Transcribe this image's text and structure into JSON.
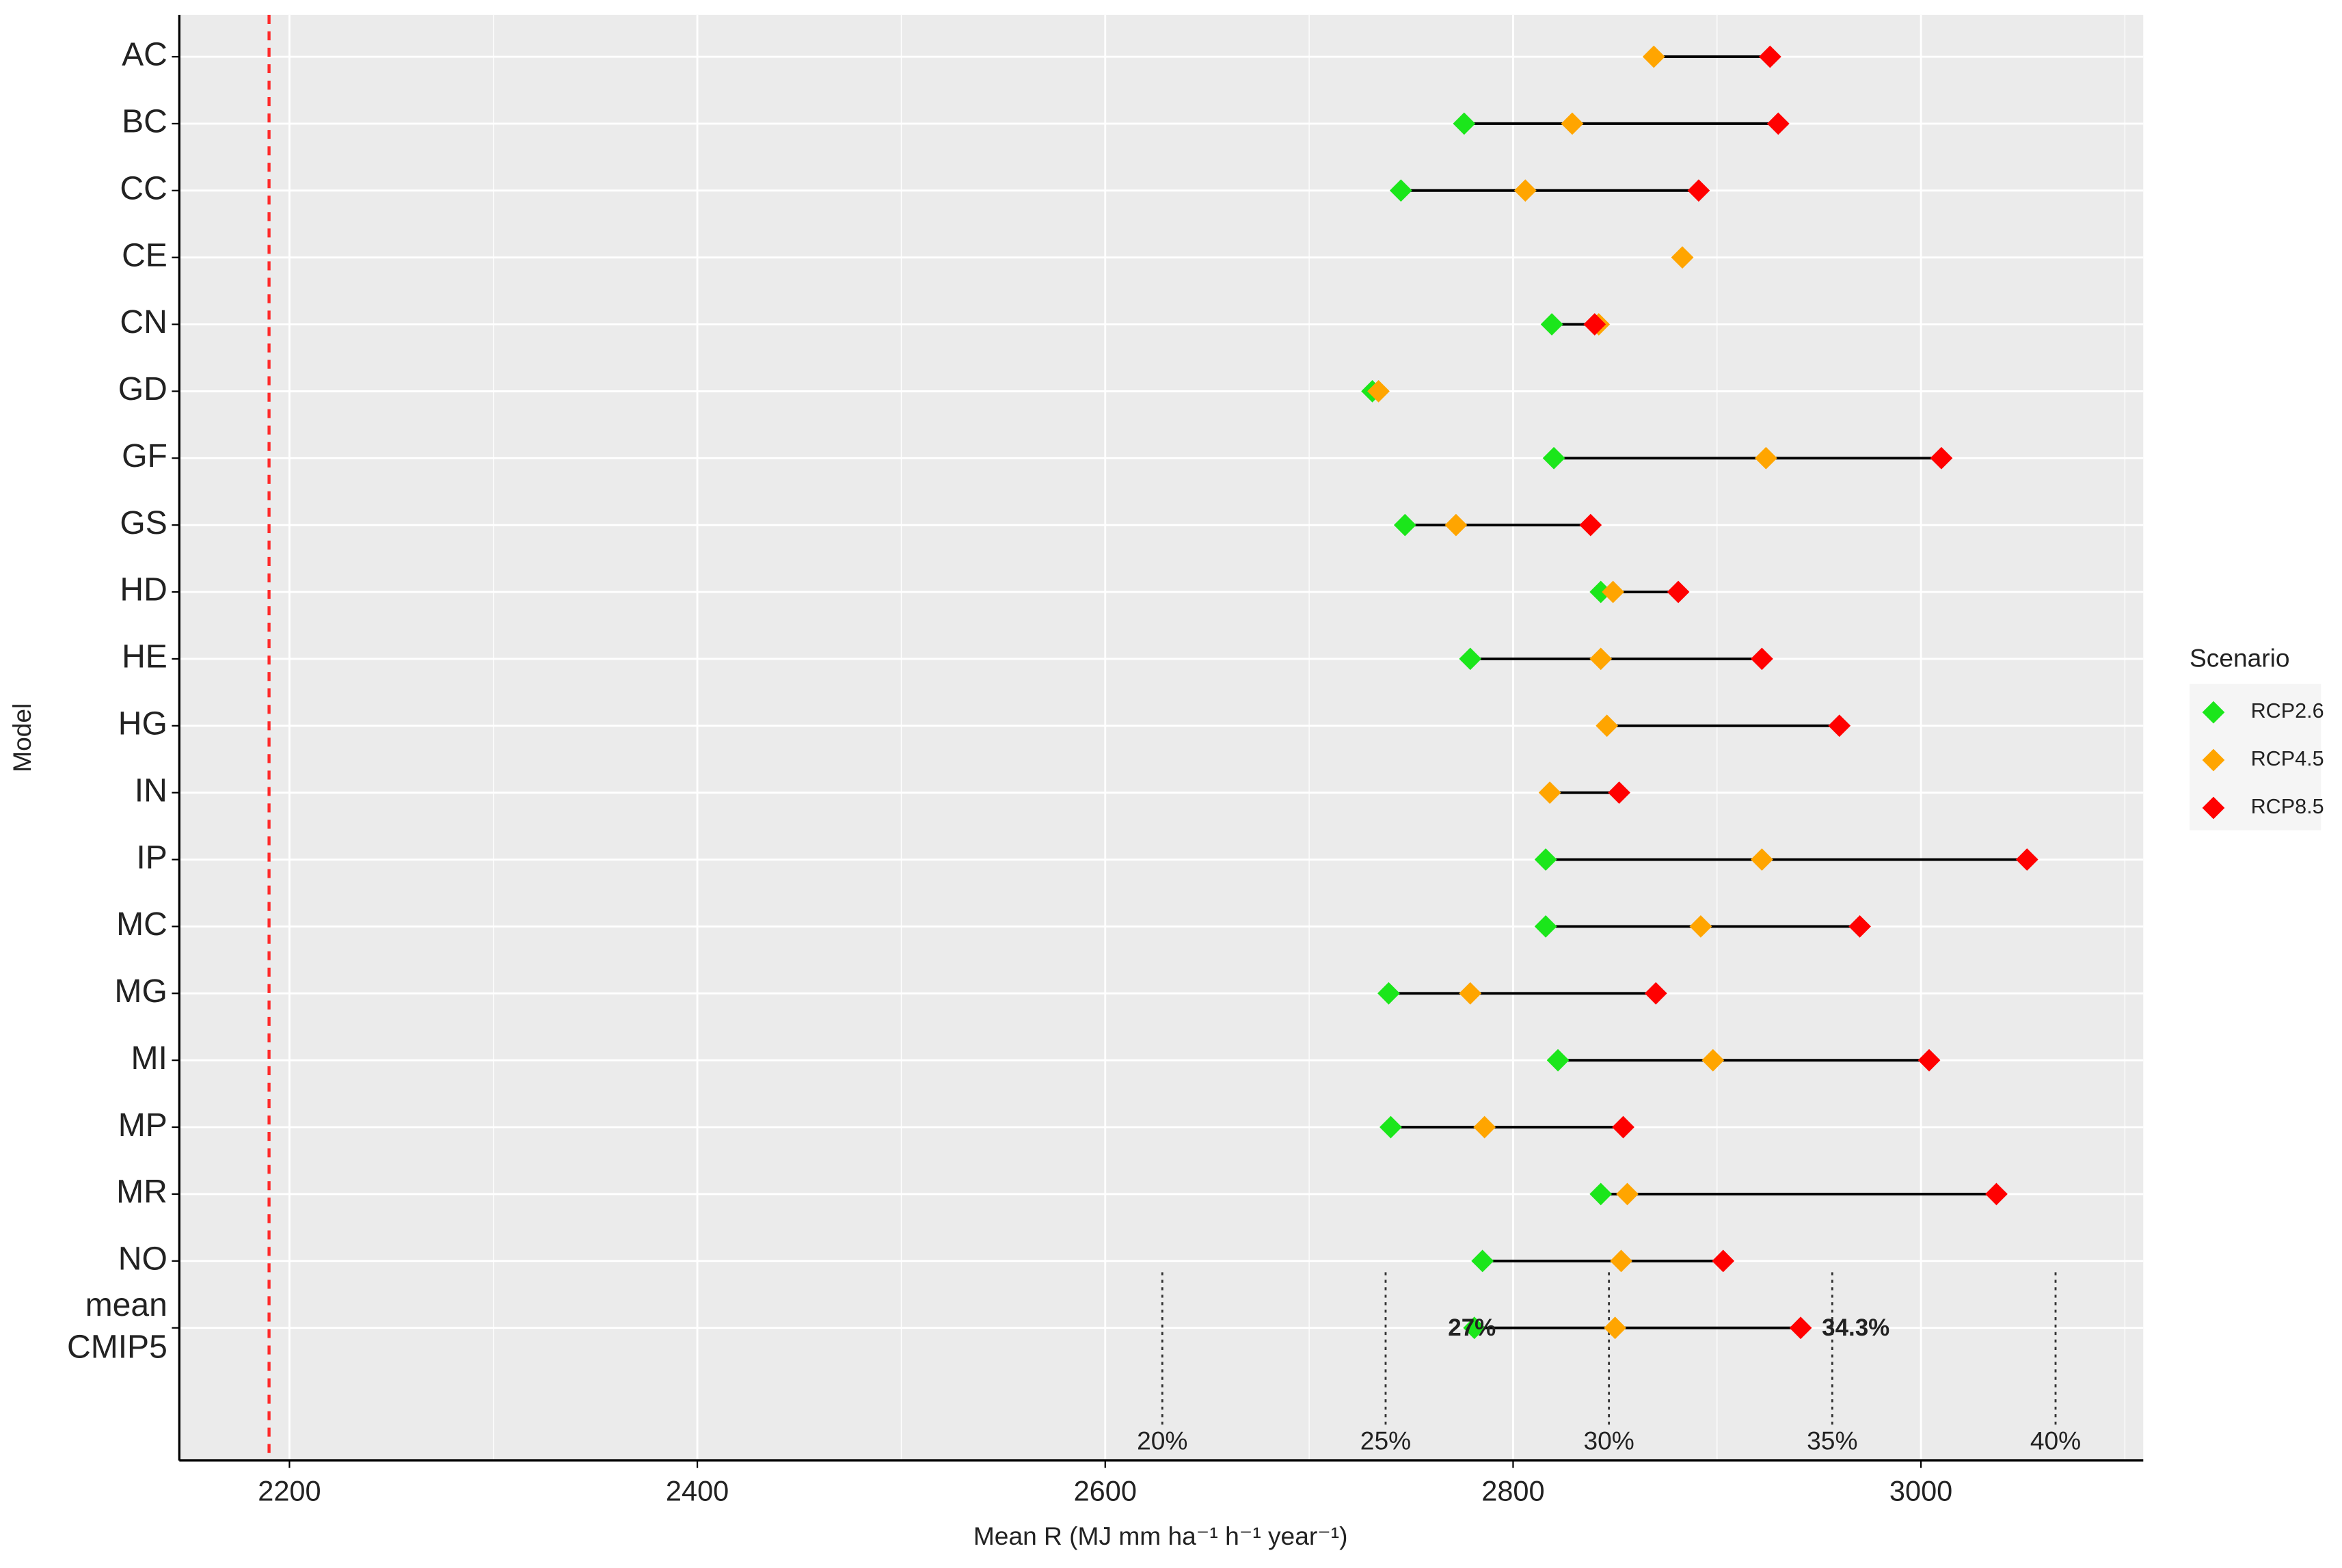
{
  "chart_data": {
    "type": "dumbbell",
    "x_label": "Mean R (MJ mm ha⁻¹ h⁻¹ year⁻¹)",
    "y_label": "Model",
    "categories": [
      "AC",
      "BC",
      "CC",
      "CE",
      "CN",
      "GD",
      "GF",
      "GS",
      "HD",
      "HE",
      "HG",
      "IN",
      "IP",
      "MC",
      "MG",
      "MI",
      "MP",
      "MR",
      "NO",
      "mean CMIP5"
    ],
    "series": [
      {
        "name": "RCP2.6",
        "color": "#1be61b",
        "values": [
          null,
          2776,
          2745,
          null,
          2819,
          2731,
          2820,
          2747,
          2843,
          2779,
          null,
          null,
          2816,
          2816,
          2739,
          2822,
          2740,
          2843,
          2785,
          2781
        ]
      },
      {
        "name": "RCP4.5",
        "color": "#ffa500",
        "values": [
          2869,
          2829,
          2806,
          2883,
          2842,
          2734,
          2924,
          2772,
          2849,
          2843,
          2846,
          2818,
          2922,
          2892,
          2779,
          2898,
          2786,
          2856,
          2853,
          2850
        ]
      },
      {
        "name": "RCP8.5",
        "color": "#ff0000",
        "values": [
          2926,
          2930,
          2891,
          null,
          2840,
          null,
          3010,
          2838,
          2881,
          2922,
          2960,
          2852,
          3052,
          2970,
          2870,
          3004,
          2854,
          3037,
          2903,
          2941
        ]
      }
    ],
    "xlim": [
      2146,
      3109
    ],
    "xticks": [
      2200,
      2400,
      2600,
      2800,
      3000
    ],
    "grid": true,
    "legend_title": "Scenario",
    "legend_position": "right",
    "reference_line": 2190,
    "percent_lines": [
      {
        "value": 20,
        "label": "20%"
      },
      {
        "value": 25,
        "label": "25%"
      },
      {
        "value": 30,
        "label": "30%"
      },
      {
        "value": 35,
        "label": "35%"
      },
      {
        "value": 40,
        "label": "40%"
      }
    ],
    "annotations": [
      {
        "value": 27,
        "label": "27%"
      },
      {
        "value": 34.3,
        "label": "34.3%"
      }
    ]
  }
}
